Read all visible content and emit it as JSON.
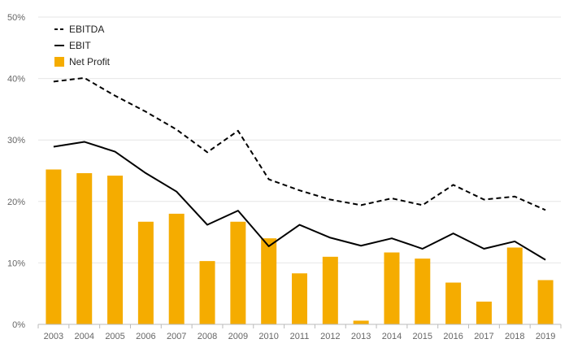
{
  "chart_data": {
    "type": "bar",
    "categories": [
      "2003",
      "2004",
      "2005",
      "2006",
      "2007",
      "2008",
      "2009",
      "2010",
      "2011",
      "2012",
      "2013",
      "2014",
      "2015",
      "2016",
      "2017",
      "2018",
      "2019"
    ],
    "series": [
      {
        "name": "EBITDA",
        "kind": "line",
        "style": "dashed",
        "color": "#000000",
        "values": [
          39.5,
          40.1,
          37.2,
          34.6,
          31.7,
          28.0,
          31.5,
          23.6,
          21.8,
          20.3,
          19.4,
          20.5,
          19.4,
          22.7,
          20.3,
          20.8,
          18.6
        ]
      },
      {
        "name": "EBIT",
        "kind": "line",
        "style": "solid",
        "color": "#000000",
        "values": [
          28.9,
          29.7,
          28.1,
          24.6,
          21.6,
          16.2,
          18.5,
          12.7,
          16.2,
          14.1,
          12.8,
          14.0,
          12.3,
          14.8,
          12.3,
          13.5,
          10.5
        ]
      },
      {
        "name": "Net Profit",
        "kind": "bar",
        "color": "#F5AC00",
        "values": [
          25.2,
          24.6,
          24.2,
          16.7,
          18.0,
          10.3,
          16.7,
          14.0,
          8.3,
          11.0,
          0.6,
          11.7,
          10.7,
          6.8,
          3.7,
          12.5,
          7.2
        ]
      }
    ],
    "y_ticks": [
      "0%",
      "10%",
      "20%",
      "30%",
      "40%",
      "50%"
    ],
    "ylim": [
      0,
      50
    ],
    "grid": true,
    "legend_position": "top-left",
    "title": "",
    "xlabel": "",
    "ylabel": ""
  }
}
